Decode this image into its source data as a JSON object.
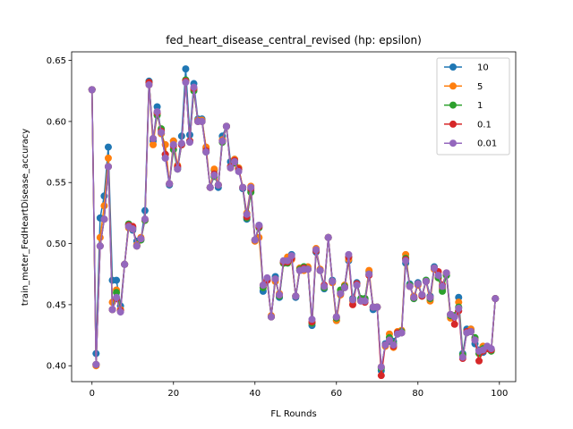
{
  "chart_data": {
    "type": "line",
    "title": "fed_heart_disease_central_revised (hp: epsilon)",
    "xlabel": "FL Rounds",
    "ylabel": "train_meter_FedHeartDisease_accuracy",
    "xlim": [
      -5,
      104
    ],
    "ylim": [
      0.387,
      0.657
    ],
    "xticks": [
      0,
      20,
      40,
      60,
      80,
      100
    ],
    "yticks": [
      0.4,
      0.45,
      0.5,
      0.55,
      0.6,
      0.65
    ],
    "grid": false,
    "legend_position": "top-right",
    "x": [
      0,
      1,
      2,
      3,
      4,
      5,
      6,
      7,
      8,
      9,
      10,
      11,
      12,
      13,
      14,
      15,
      16,
      17,
      18,
      19,
      20,
      21,
      22,
      23,
      24,
      25,
      26,
      27,
      28,
      29,
      30,
      31,
      32,
      33,
      34,
      35,
      36,
      37,
      38,
      39,
      40,
      41,
      42,
      43,
      44,
      45,
      46,
      47,
      48,
      49,
      50,
      51,
      52,
      53,
      54,
      55,
      56,
      57,
      58,
      59,
      60,
      61,
      62,
      63,
      64,
      65,
      66,
      67,
      68,
      69,
      70,
      71,
      72,
      73,
      74,
      75,
      76,
      77,
      78,
      79,
      80,
      81,
      82,
      83,
      84,
      85,
      86,
      87,
      88,
      89,
      90,
      91,
      92,
      93,
      94,
      95,
      96,
      97,
      98,
      99
    ],
    "series": [
      {
        "name": "10",
        "color": "#1f77b4",
        "values": [
          0.626,
          0.41,
          0.521,
          0.539,
          0.579,
          0.47,
          0.47,
          0.449,
          0.483,
          0.516,
          0.511,
          0.502,
          0.503,
          0.527,
          0.633,
          0.584,
          0.612,
          0.59,
          0.57,
          0.548,
          0.584,
          0.562,
          0.588,
          0.643,
          0.589,
          0.631,
          0.602,
          0.602,
          0.578,
          0.546,
          0.56,
          0.546,
          0.588,
          0.596,
          0.567,
          0.569,
          0.561,
          0.545,
          0.52,
          0.543,
          0.503,
          0.515,
          0.461,
          0.47,
          0.44,
          0.473,
          0.456,
          0.484,
          0.485,
          0.491,
          0.456,
          0.478,
          0.481,
          0.479,
          0.433,
          0.493,
          0.478,
          0.463,
          0.505,
          0.47,
          0.437,
          0.46,
          0.464,
          0.486,
          0.455,
          0.468,
          0.455,
          0.455,
          0.477,
          0.446,
          0.448,
          0.396,
          0.418,
          0.42,
          0.42,
          0.426,
          0.427,
          0.484,
          0.467,
          0.455,
          0.468,
          0.458,
          0.47,
          0.457,
          0.481,
          0.474,
          0.463,
          0.474,
          0.442,
          0.441,
          0.456,
          0.41,
          0.43,
          0.43,
          0.418,
          0.413,
          0.411,
          0.415,
          0.413,
          0.455
        ]
      },
      {
        "name": "5",
        "color": "#ff7f0e",
        "values": [
          0.626,
          0.4,
          0.505,
          0.531,
          0.57,
          0.452,
          0.462,
          0.446,
          0.483,
          0.513,
          0.512,
          0.499,
          0.505,
          0.519,
          0.63,
          0.581,
          0.607,
          0.59,
          0.581,
          0.549,
          0.584,
          0.564,
          0.581,
          0.633,
          0.584,
          0.626,
          0.601,
          0.601,
          0.579,
          0.546,
          0.561,
          0.548,
          0.585,
          0.596,
          0.562,
          0.569,
          0.562,
          0.546,
          0.525,
          0.547,
          0.502,
          0.505,
          0.466,
          0.47,
          0.441,
          0.469,
          0.459,
          0.484,
          0.489,
          0.487,
          0.457,
          0.48,
          0.478,
          0.481,
          0.435,
          0.496,
          0.479,
          0.464,
          0.505,
          0.468,
          0.437,
          0.458,
          0.466,
          0.487,
          0.453,
          0.467,
          0.454,
          0.454,
          0.478,
          0.448,
          0.448,
          0.399,
          0.416,
          0.426,
          0.415,
          0.428,
          0.429,
          0.491,
          0.465,
          0.457,
          0.466,
          0.458,
          0.469,
          0.453,
          0.479,
          0.472,
          0.464,
          0.475,
          0.439,
          0.441,
          0.452,
          0.408,
          0.427,
          0.43,
          0.422,
          0.41,
          0.416,
          0.414,
          0.413,
          0.455
        ]
      },
      {
        "name": "1",
        "color": "#2ca02c",
        "values": [
          0.626,
          0.401,
          0.498,
          0.52,
          0.563,
          0.446,
          0.46,
          0.445,
          0.483,
          0.516,
          0.513,
          0.498,
          0.503,
          0.519,
          0.632,
          0.586,
          0.605,
          0.594,
          0.573,
          0.549,
          0.577,
          0.561,
          0.581,
          0.634,
          0.584,
          0.625,
          0.6,
          0.6,
          0.575,
          0.546,
          0.555,
          0.548,
          0.583,
          0.596,
          0.563,
          0.566,
          0.561,
          0.546,
          0.521,
          0.542,
          0.503,
          0.513,
          0.464,
          0.471,
          0.44,
          0.471,
          0.457,
          0.484,
          0.484,
          0.488,
          0.457,
          0.479,
          0.481,
          0.479,
          0.435,
          0.494,
          0.478,
          0.464,
          0.505,
          0.469,
          0.439,
          0.462,
          0.465,
          0.489,
          0.454,
          0.466,
          0.455,
          0.455,
          0.475,
          0.448,
          0.448,
          0.398,
          0.417,
          0.423,
          0.418,
          0.427,
          0.428,
          0.488,
          0.466,
          0.455,
          0.467,
          0.457,
          0.47,
          0.455,
          0.48,
          0.472,
          0.461,
          0.474,
          0.441,
          0.441,
          0.448,
          0.409,
          0.427,
          0.428,
          0.423,
          0.41,
          0.414,
          0.414,
          0.412,
          0.455
        ]
      },
      {
        "name": "0.1",
        "color": "#d62728",
        "values": [
          0.626,
          0.401,
          0.498,
          0.52,
          0.563,
          0.446,
          0.455,
          0.445,
          0.483,
          0.515,
          0.514,
          0.498,
          0.504,
          0.52,
          0.632,
          0.586,
          0.607,
          0.592,
          0.573,
          0.549,
          0.58,
          0.563,
          0.581,
          0.633,
          0.584,
          0.627,
          0.6,
          0.6,
          0.576,
          0.546,
          0.557,
          0.548,
          0.584,
          0.596,
          0.563,
          0.568,
          0.561,
          0.546,
          0.522,
          0.545,
          0.503,
          0.514,
          0.466,
          0.47,
          0.44,
          0.471,
          0.458,
          0.485,
          0.485,
          0.488,
          0.457,
          0.478,
          0.48,
          0.479,
          0.436,
          0.494,
          0.478,
          0.466,
          0.505,
          0.469,
          0.44,
          0.459,
          0.464,
          0.489,
          0.45,
          0.467,
          0.453,
          0.452,
          0.474,
          0.448,
          0.448,
          0.392,
          0.417,
          0.421,
          0.416,
          0.427,
          0.427,
          0.487,
          0.465,
          0.456,
          0.467,
          0.457,
          0.469,
          0.456,
          0.48,
          0.477,
          0.466,
          0.476,
          0.442,
          0.434,
          0.445,
          0.406,
          0.428,
          0.428,
          0.421,
          0.404,
          0.412,
          0.414,
          0.413,
          0.455
        ]
      },
      {
        "name": "0.01",
        "color": "#9467bd",
        "values": [
          0.626,
          0.401,
          0.498,
          0.52,
          0.563,
          0.446,
          0.456,
          0.444,
          0.483,
          0.514,
          0.512,
          0.498,
          0.504,
          0.52,
          0.63,
          0.586,
          0.608,
          0.591,
          0.57,
          0.549,
          0.581,
          0.561,
          0.582,
          0.632,
          0.583,
          0.628,
          0.6,
          0.6,
          0.575,
          0.546,
          0.556,
          0.548,
          0.584,
          0.596,
          0.562,
          0.567,
          0.559,
          0.546,
          0.524,
          0.546,
          0.503,
          0.515,
          0.466,
          0.472,
          0.44,
          0.471,
          0.458,
          0.486,
          0.486,
          0.49,
          0.457,
          0.478,
          0.479,
          0.479,
          0.438,
          0.495,
          0.478,
          0.465,
          0.505,
          0.469,
          0.44,
          0.459,
          0.464,
          0.491,
          0.454,
          0.466,
          0.453,
          0.453,
          0.475,
          0.448,
          0.448,
          0.399,
          0.417,
          0.421,
          0.417,
          0.426,
          0.427,
          0.486,
          0.465,
          0.456,
          0.467,
          0.458,
          0.469,
          0.456,
          0.48,
          0.474,
          0.465,
          0.476,
          0.442,
          0.44,
          0.447,
          0.407,
          0.427,
          0.428,
          0.421,
          0.412,
          0.413,
          0.416,
          0.414,
          0.455
        ]
      }
    ]
  }
}
